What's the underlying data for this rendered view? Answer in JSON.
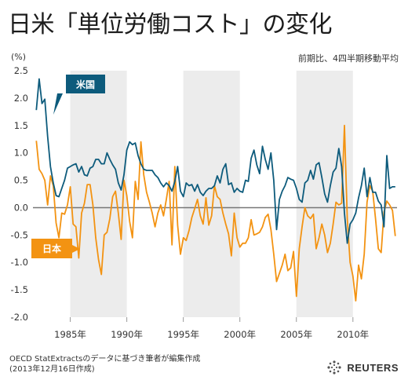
{
  "title": "日米「単位労働コスト」の変化",
  "unit_label": "(%)",
  "subtitle": "前期比、4四半期移動平均",
  "source_lines": [
    "OECD StatExtractsのデータに基づき筆者が編集作成",
    "(2013年12月16日作成)"
  ],
  "brand": "REUTERS",
  "colors": {
    "us": "#0d5b7c",
    "japan": "#f39312",
    "shade": "#ececec",
    "zero_line": "#777777"
  },
  "chart_data": {
    "type": "line",
    "title": "日米「単位労働コスト」の変化",
    "ylabel": "(%)",
    "xlabel": "",
    "ylim": [
      -2.0,
      2.5
    ],
    "xlim": [
      1981.7,
      2013.9
    ],
    "yticks": [
      "2.5",
      "2.0",
      "1.5",
      "1.0",
      "0.5",
      "0.0",
      "-0.5",
      "-1.0",
      "-1.5",
      "-2.0"
    ],
    "yticks_values": [
      2.5,
      2.0,
      1.5,
      1.0,
      0.5,
      0.0,
      -0.5,
      -1.0,
      -1.5,
      -2.0
    ],
    "xticks": [
      "1985年",
      "1990年",
      "1995年",
      "2000年",
      "2005年",
      "2010年"
    ],
    "xticks_values": [
      1985,
      1990,
      1995,
      2000,
      2005,
      2010
    ],
    "shaded_periods": [
      [
        1985,
        1990
      ],
      [
        1995,
        2000
      ],
      [
        2005,
        2010
      ]
    ],
    "grid": false,
    "series": [
      {
        "name": "米国",
        "x": [
          1982.0,
          1982.25,
          1982.5,
          1982.75,
          1983.0,
          1983.25,
          1983.5,
          1983.75,
          1984.0,
          1984.25,
          1984.5,
          1984.75,
          1985.0,
          1985.25,
          1985.5,
          1985.75,
          1986.0,
          1986.25,
          1986.5,
          1986.75,
          1987.0,
          1987.25,
          1987.5,
          1987.75,
          1988.0,
          1988.25,
          1988.5,
          1988.75,
          1989.0,
          1989.25,
          1989.5,
          1989.75,
          1990.0,
          1990.25,
          1990.5,
          1990.75,
          1991.0,
          1991.25,
          1991.5,
          1991.75,
          1992.0,
          1992.25,
          1992.5,
          1992.75,
          1993.0,
          1993.25,
          1993.5,
          1993.75,
          1994.0,
          1994.25,
          1994.5,
          1994.75,
          1995.0,
          1995.25,
          1995.5,
          1995.75,
          1996.0,
          1996.25,
          1996.5,
          1996.75,
          1997.0,
          1997.25,
          1997.5,
          1997.75,
          1998.0,
          1998.25,
          1998.5,
          1998.75,
          1999.0,
          1999.25,
          1999.5,
          1999.75,
          2000.0,
          2000.25,
          2000.5,
          2000.75,
          2001.0,
          2001.25,
          2001.5,
          2001.75,
          2002.0,
          2002.25,
          2002.5,
          2002.75,
          2003.0,
          2003.25,
          2003.5,
          2003.75,
          2004.0,
          2004.25,
          2004.5,
          2004.75,
          2005.0,
          2005.25,
          2005.5,
          2005.75,
          2006.0,
          2006.25,
          2006.5,
          2006.75,
          2007.0,
          2007.25,
          2007.5,
          2007.75,
          2008.0,
          2008.25,
          2008.5,
          2008.75,
          2009.0,
          2009.25,
          2009.5,
          2009.75,
          2010.0,
          2010.25,
          2010.5,
          2010.75,
          2011.0,
          2011.25,
          2011.5,
          2011.75,
          2012.0,
          2012.25,
          2012.5,
          2012.75,
          2013.0,
          2013.25,
          2013.5,
          2013.75
        ],
        "values": [
          1.78,
          2.35,
          1.9,
          1.98,
          1.3,
          0.75,
          0.45,
          0.22,
          0.2,
          0.35,
          0.5,
          0.72,
          0.75,
          0.78,
          0.8,
          0.65,
          0.75,
          0.6,
          0.58,
          0.72,
          0.75,
          0.88,
          0.88,
          0.8,
          0.8,
          1.0,
          0.88,
          0.78,
          0.7,
          0.45,
          0.32,
          0.6,
          1.05,
          1.2,
          1.15,
          1.18,
          0.95,
          0.8,
          0.7,
          0.68,
          0.68,
          0.68,
          0.6,
          0.55,
          0.45,
          0.38,
          0.45,
          0.4,
          0.3,
          0.48,
          0.75,
          0.3,
          0.2,
          0.45,
          0.4,
          0.42,
          0.3,
          0.42,
          0.28,
          0.22,
          0.3,
          0.35,
          0.35,
          0.4,
          0.58,
          0.45,
          0.7,
          0.8,
          0.42,
          0.45,
          0.28,
          0.35,
          0.3,
          0.28,
          0.5,
          0.48,
          0.9,
          1.05,
          0.78,
          0.62,
          1.12,
          0.88,
          0.7,
          1.0,
          0.5,
          -0.4,
          0.15,
          0.3,
          0.4,
          0.55,
          0.52,
          0.5,
          0.35,
          0.15,
          0.1,
          0.45,
          0.5,
          0.68,
          0.52,
          0.78,
          0.82,
          0.55,
          0.25,
          0.1,
          0.4,
          0.65,
          0.72,
          1.08,
          0.75,
          -0.1,
          -0.65,
          -0.3,
          -0.22,
          -0.1,
          0.18,
          0.4,
          0.72,
          0.2,
          0.55,
          0.28,
          0.28,
          0.12,
          0.05,
          -0.35,
          0.95,
          0.35,
          0.38,
          0.38
        ]
      },
      {
        "name": "日本",
        "x": [
          1982.0,
          1982.25,
          1982.5,
          1982.75,
          1983.0,
          1983.25,
          1983.5,
          1983.75,
          1984.0,
          1984.25,
          1984.5,
          1984.75,
          1985.0,
          1985.25,
          1985.5,
          1985.75,
          1986.0,
          1986.25,
          1986.5,
          1986.75,
          1987.0,
          1987.25,
          1987.5,
          1987.75,
          1988.0,
          1988.25,
          1988.5,
          1988.75,
          1989.0,
          1989.25,
          1989.5,
          1989.75,
          1990.0,
          1990.25,
          1990.5,
          1990.75,
          1991.0,
          1991.25,
          1991.5,
          1991.75,
          1992.0,
          1992.25,
          1992.5,
          1992.75,
          1993.0,
          1993.25,
          1993.5,
          1993.75,
          1994.0,
          1994.25,
          1994.5,
          1994.75,
          1995.0,
          1995.25,
          1995.5,
          1995.75,
          1996.0,
          1996.25,
          1996.5,
          1996.75,
          1997.0,
          1997.25,
          1997.5,
          1997.75,
          1998.0,
          1998.25,
          1998.5,
          1998.75,
          1999.0,
          1999.25,
          1999.5,
          1999.75,
          2000.0,
          2000.25,
          2000.5,
          2000.75,
          2001.0,
          2001.25,
          2001.5,
          2001.75,
          2002.0,
          2002.25,
          2002.5,
          2002.75,
          2003.0,
          2003.25,
          2003.5,
          2003.75,
          2004.0,
          2004.25,
          2004.5,
          2004.75,
          2005.0,
          2005.25,
          2005.5,
          2005.75,
          2006.0,
          2006.25,
          2006.5,
          2006.75,
          2007.0,
          2007.25,
          2007.5,
          2007.75,
          2008.0,
          2008.25,
          2008.5,
          2008.75,
          2009.0,
          2009.25,
          2009.5,
          2009.75,
          2010.0,
          2010.25,
          2010.5,
          2010.75,
          2011.0,
          2011.25,
          2011.5,
          2011.75,
          2012.0,
          2012.25,
          2012.5,
          2012.75,
          2013.0,
          2013.25,
          2013.5,
          2013.75
        ],
        "values": [
          1.22,
          0.7,
          0.62,
          0.5,
          0.05,
          0.58,
          0.4,
          -0.28,
          -0.55,
          -0.1,
          -0.12,
          0.05,
          0.38,
          -0.3,
          -0.35,
          -0.92,
          -0.1,
          0.08,
          0.42,
          0.42,
          0.05,
          -0.55,
          -0.95,
          -1.22,
          -0.5,
          -0.45,
          -0.2,
          0.2,
          0.3,
          -0.1,
          -0.58,
          0.5,
          0.22,
          -0.25,
          -0.55,
          0.48,
          0.15,
          1.2,
          0.6,
          0.28,
          0.1,
          -0.1,
          -0.35,
          -0.1,
          0.05,
          -0.15,
          0.15,
          0.48,
          -0.68,
          0.75,
          -0.32,
          -0.85,
          -0.55,
          -0.6,
          -0.42,
          -0.18,
          -0.02,
          0.15,
          -0.15,
          -0.3,
          0.18,
          -0.32,
          -0.15,
          0.4,
          0.2,
          0.15,
          -0.1,
          -0.3,
          -0.48,
          -0.88,
          -0.1,
          -0.55,
          -0.72,
          -0.65,
          -0.65,
          -0.55,
          -0.22,
          -0.5,
          -0.48,
          -0.45,
          -0.35,
          -0.18,
          -0.12,
          -0.4,
          -0.85,
          -1.35,
          -1.2,
          -1.05,
          -0.85,
          -1.15,
          -1.1,
          -0.8,
          -1.62,
          -0.75,
          -0.35,
          0.0,
          -0.15,
          -0.2,
          -0.12,
          -0.75,
          -0.55,
          -0.3,
          -0.5,
          -0.82,
          -0.65,
          -0.3,
          0.1,
          0.05,
          0.08,
          1.5,
          -0.2,
          -1.0,
          -1.25,
          -1.7,
          -1.05,
          -1.3,
          -0.85,
          0.1,
          0.4,
          0.3,
          -0.2,
          -0.75,
          -0.82,
          -0.08,
          0.12,
          0.05,
          -0.05,
          -0.52
        ]
      }
    ]
  }
}
